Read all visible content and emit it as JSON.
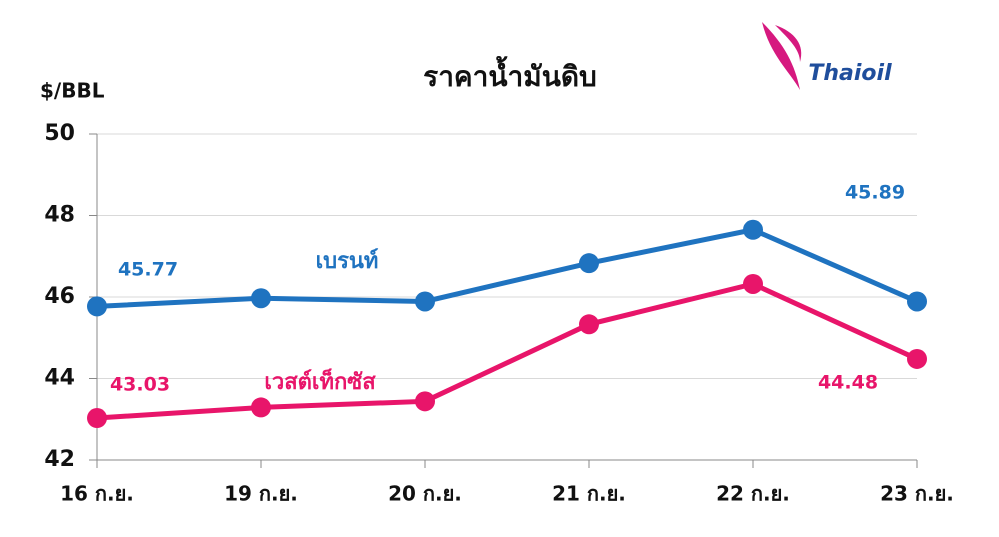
{
  "logo": "Thaioil",
  "chart_data": {
    "type": "line",
    "title": "ราคาน้ำมันดิบ",
    "y_label": "$/BBL",
    "categories": [
      "16 ก.ย.",
      "19 ก.ย.",
      "20 ก.ย.",
      "21 ก.ย.",
      "22 ก.ย.",
      "23 ก.ย."
    ],
    "series": [
      {
        "name": "เบรนท์",
        "color": "#1f73c0",
        "values": [
          45.77,
          45.97,
          45.89,
          46.83,
          47.65,
          45.89
        ],
        "data_labels": [
          0,
          5
        ]
      },
      {
        "name": "เวสต์เท็กซัส",
        "color": "#e8156a",
        "values": [
          43.03,
          43.29,
          43.44,
          45.33,
          46.32,
          44.48
        ],
        "data_labels": [
          0,
          5
        ]
      }
    ],
    "ylim": [
      42,
      50
    ],
    "yticks": [
      42,
      44,
      46,
      48,
      50
    ],
    "grid": true
  }
}
